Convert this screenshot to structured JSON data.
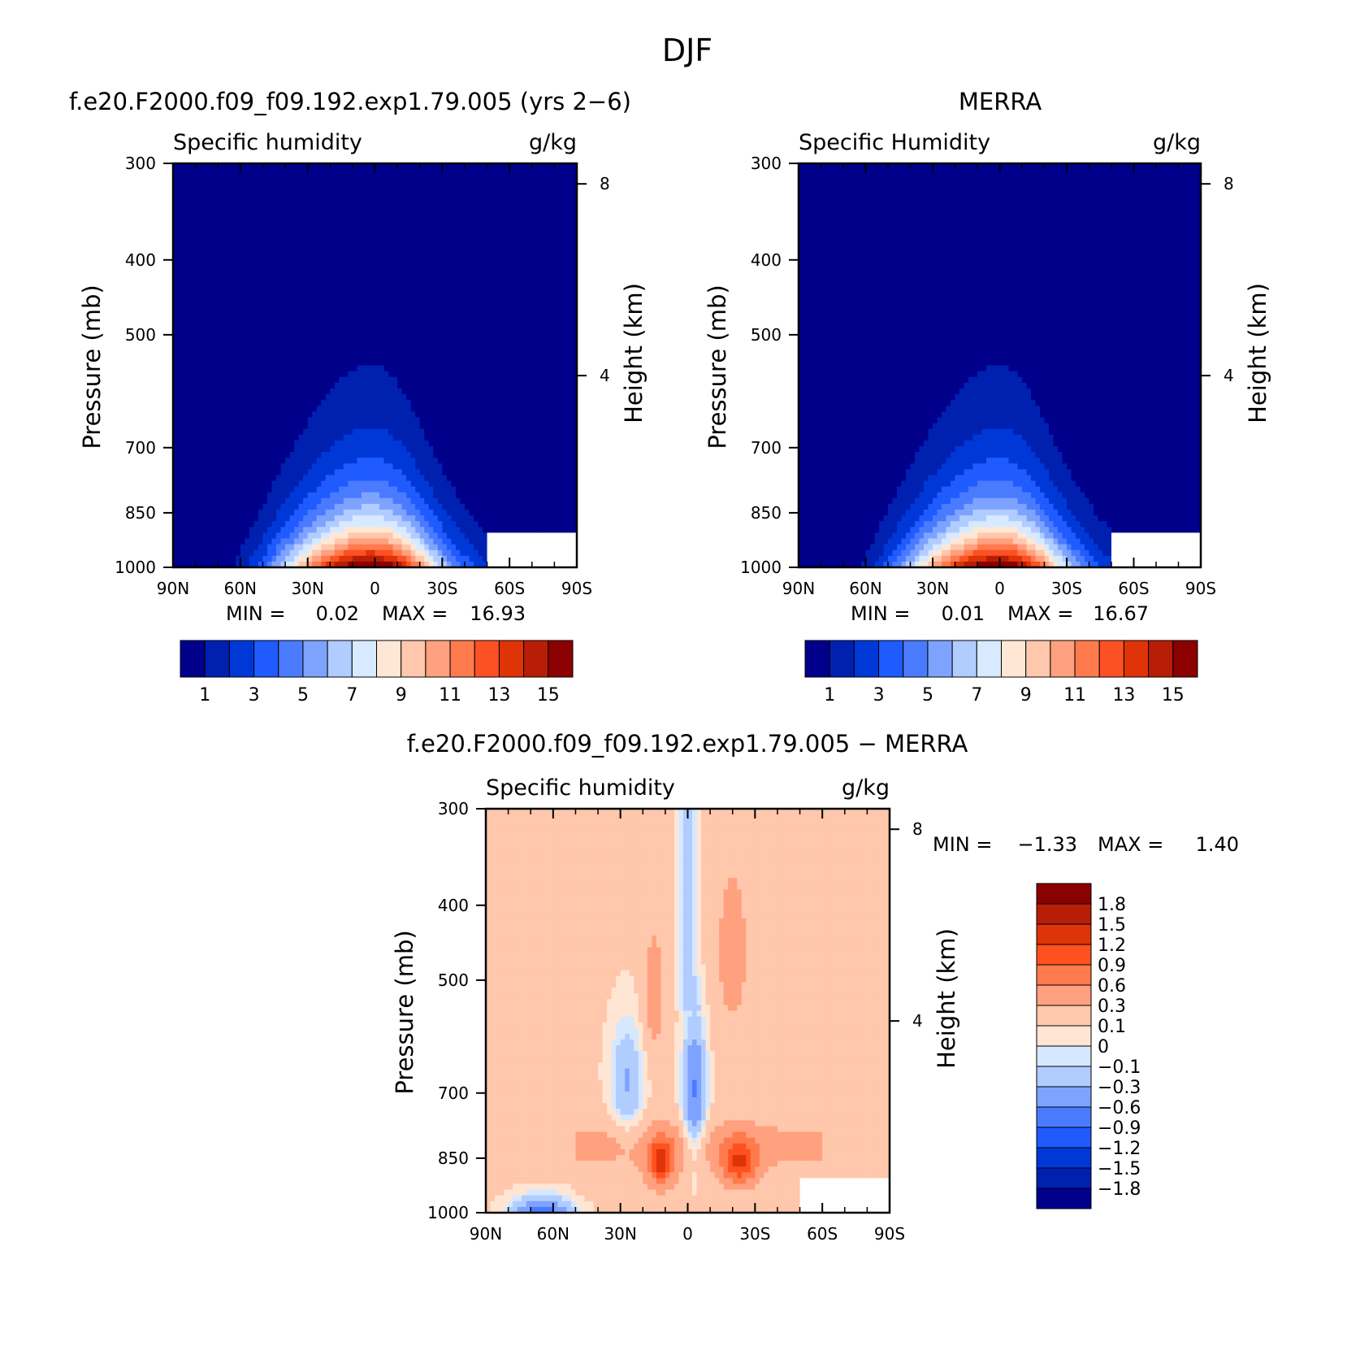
{
  "figure": {
    "title": "DJF"
  },
  "chart_data": [
    {
      "type": "heatmap",
      "panel": "model",
      "title": "f.e20.F2000.f09_f09.192.exp1.79.005 (yrs 2−6)",
      "variable": "Specific humidity",
      "units": "g/kg",
      "ylabel": "Pressure (mb)",
      "y2label": "Height (km)",
      "xticks": [
        "90N",
        "60N",
        "30N",
        "0",
        "30S",
        "60S",
        "90S"
      ],
      "yticks": [
        "300",
        "400",
        "500",
        "700",
        "850",
        "1000"
      ],
      "y2ticks": [
        "8",
        "4"
      ],
      "min_label": "MIN =",
      "min_value": "0.02",
      "max_label": "MAX =",
      "max_value": "16.93",
      "peak_value": 16.93,
      "peak_lat": 0,
      "peak_pressure": 1000,
      "colorbar_labels": [
        "1",
        "3",
        "5",
        "7",
        "9",
        "11",
        "13",
        "15"
      ]
    },
    {
      "type": "heatmap",
      "panel": "obs",
      "title": "MERRA",
      "variable": "Specific Humidity",
      "units": "g/kg",
      "ylabel": "Pressure (mb)",
      "y2label": "Height (km)",
      "xticks": [
        "90N",
        "60N",
        "30N",
        "0",
        "30S",
        "60S",
        "90S"
      ],
      "yticks": [
        "300",
        "400",
        "500",
        "700",
        "850",
        "1000"
      ],
      "y2ticks": [
        "8",
        "4"
      ],
      "min_label": "MIN =",
      "min_value": "0.01",
      "max_label": "MAX =",
      "max_value": "16.67",
      "peak_value": 16.67,
      "peak_lat": 0,
      "peak_pressure": 1000,
      "colorbar_labels": [
        "1",
        "3",
        "5",
        "7",
        "9",
        "11",
        "13",
        "15"
      ]
    },
    {
      "type": "heatmap",
      "panel": "diff",
      "title": "f.e20.F2000.f09_f09.192.exp1.79.005 − MERRA",
      "variable": "Specific humidity",
      "units": "g/kg",
      "ylabel": "Pressure (mb)",
      "y2label": "Height (km)",
      "xticks": [
        "90N",
        "60N",
        "30N",
        "0",
        "30S",
        "60S",
        "90S"
      ],
      "yticks": [
        "300",
        "400",
        "500",
        "700",
        "850",
        "1000"
      ],
      "y2ticks": [
        "8",
        "4"
      ],
      "min_label": "MIN =",
      "min_value": "−1.33",
      "max_label": "MAX =",
      "max_value": "1.40",
      "colorbar_labels": [
        "1.8",
        "1.5",
        "1.2",
        "0.9",
        "0.6",
        "0.3",
        "0.1",
        "0",
        "−0.1",
        "−0.3",
        "−0.6",
        "−0.9",
        "−1.2",
        "−1.5",
        "−1.8"
      ]
    }
  ],
  "colors": {
    "seq": [
      "#00008b",
      "#0020b0",
      "#0038d8",
      "#1f5bff",
      "#4a7bff",
      "#7ea3ff",
      "#b1ccff",
      "#d8eaff",
      "#ffe7d5",
      "#ffc7ab",
      "#ffa07e",
      "#ff7a4d",
      "#fb5123",
      "#df3308",
      "#b81e07",
      "#8b0000"
    ],
    "div": [
      "#8b0000",
      "#b81e07",
      "#df3308",
      "#ff5120",
      "#ff7a4d",
      "#ffa07e",
      "#ffc7ab",
      "#ffe6d4",
      "#d6e8ff",
      "#b1ccff",
      "#7ea3ff",
      "#4a7bff",
      "#1f5bff",
      "#0038d8",
      "#0020b0",
      "#00008b"
    ]
  }
}
